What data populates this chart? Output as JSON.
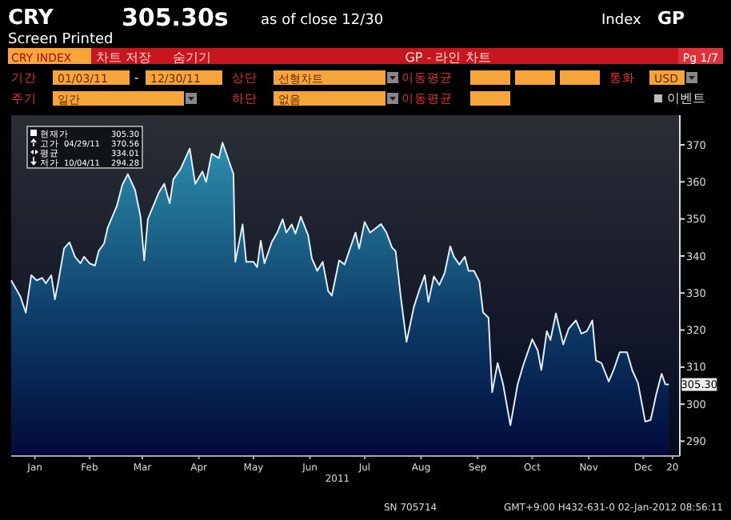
{
  "chart_data": {
    "type": "area",
    "xlabel": "2011",
    "x": [
      "2011-01-03",
      "2011-01-08",
      "2011-01-11",
      "2011-01-14",
      "2011-01-17",
      "2011-01-20",
      "2011-01-22",
      "2011-01-25",
      "2011-01-27",
      "2011-01-29",
      "2011-02-01",
      "2011-02-04",
      "2011-02-07",
      "2011-02-10",
      "2011-02-12",
      "2011-02-15",
      "2011-02-18",
      "2011-02-20",
      "2011-02-23",
      "2011-02-25",
      "2011-03-02",
      "2011-03-05",
      "2011-03-08",
      "2011-03-12",
      "2011-03-15",
      "2011-03-17",
      "2011-03-19",
      "2011-03-22",
      "2011-03-25",
      "2011-03-28",
      "2011-03-31",
      "2011-04-02",
      "2011-04-06",
      "2011-04-11",
      "2011-04-14",
      "2011-04-18",
      "2011-04-20",
      "2011-04-23",
      "2011-04-27",
      "2011-04-29",
      "2011-05-05",
      "2011-05-06",
      "2011-05-10",
      "2011-05-12",
      "2011-05-16",
      "2011-05-18",
      "2011-05-20",
      "2011-05-22",
      "2011-05-26",
      "2011-05-29",
      "2011-06-01",
      "2011-06-03",
      "2011-06-06",
      "2011-06-08",
      "2011-06-11",
      "2011-06-15",
      "2011-06-17",
      "2011-06-20",
      "2011-06-23",
      "2011-06-26",
      "2011-06-28",
      "2011-07-02",
      "2011-07-05",
      "2011-07-08",
      "2011-07-11",
      "2011-07-13",
      "2011-07-16",
      "2011-07-19",
      "2011-07-25",
      "2011-07-28",
      "2011-07-31",
      "2011-08-02",
      "2011-08-05",
      "2011-08-08",
      "2011-08-12",
      "2011-08-15",
      "2011-08-18",
      "2011-08-20",
      "2011-08-23",
      "2011-08-26",
      "2011-08-29",
      "2011-09-01",
      "2011-09-03",
      "2011-09-06",
      "2011-09-09",
      "2011-09-11",
      "2011-09-14",
      "2011-09-17",
      "2011-09-19",
      "2011-09-22",
      "2011-09-24",
      "2011-09-27",
      "2011-09-30",
      "2011-10-04",
      "2011-10-08",
      "2011-10-11",
      "2011-10-16",
      "2011-10-19",
      "2011-10-21",
      "2011-10-24",
      "2011-10-26",
      "2011-10-29",
      "2011-11-02",
      "2011-11-05",
      "2011-11-09",
      "2011-11-12",
      "2011-11-15",
      "2011-11-18",
      "2011-11-20",
      "2011-11-23",
      "2011-11-27",
      "2011-11-30",
      "2011-12-03",
      "2011-12-07",
      "2011-12-10",
      "2011-12-13",
      "2011-12-14",
      "2011-12-17",
      "2011-12-20",
      "2011-12-23",
      "2011-12-26",
      "2011-12-28",
      "2011-12-30"
    ],
    "values": [
      333.4,
      329.1,
      324.7,
      334.8,
      333.4,
      334.1,
      332.6,
      334.8,
      328.3,
      333.4,
      342.0,
      343.7,
      339.8,
      338.0,
      339.8,
      338.0,
      337.4,
      341.3,
      343.4,
      347.7,
      353.5,
      359.2,
      362.1,
      357.8,
      350.6,
      338.8,
      349.9,
      353.5,
      357.1,
      359.5,
      354.2,
      360.7,
      363.5,
      369.0,
      359.5,
      362.8,
      360.0,
      367.6,
      366.4,
      370.6,
      362.1,
      338.4,
      348.5,
      338.4,
      338.4,
      337.0,
      344.1,
      338.0,
      343.7,
      346.3,
      349.9,
      346.3,
      348.5,
      346.0,
      350.6,
      345.6,
      339.4,
      336.0,
      338.4,
      330.5,
      329.3,
      338.8,
      337.7,
      342.0,
      346.3,
      342.0,
      349.2,
      346.3,
      348.6,
      346.3,
      342.3,
      341.3,
      328.3,
      316.8,
      326.2,
      330.8,
      334.8,
      327.6,
      334.5,
      332.2,
      335.5,
      342.6,
      339.8,
      337.7,
      339.8,
      336.0,
      336.0,
      333.1,
      324.8,
      323.3,
      303.2,
      311.1,
      305.4,
      294.3,
      305.4,
      310.4,
      317.5,
      314.5,
      309.2,
      319.7,
      317.3,
      324.5,
      316.1,
      320.4,
      322.6,
      319.0,
      319.7,
      322.6,
      311.8,
      311.1,
      306.1,
      309.7,
      314.0,
      314.0,
      309.0,
      305.8,
      303.2,
      295.3,
      295.7,
      302.5,
      308.2,
      305.4,
      305.3
    ],
    "color": "#dfeef5",
    "xlim": [
      "2011-01-03",
      "2012-01-05"
    ],
    "xticks": [
      {
        "value": "2011-01-16",
        "label": "Jan"
      },
      {
        "value": "2011-02-15",
        "label": "Feb"
      },
      {
        "value": "2011-03-16",
        "label": "Mar"
      },
      {
        "value": "2011-04-16",
        "label": "Apr"
      },
      {
        "value": "2011-05-16",
        "label": "May"
      },
      {
        "value": "2011-06-16",
        "label": "Jun"
      },
      {
        "value": "2011-07-16",
        "label": "Jul"
      },
      {
        "value": "2011-08-16",
        "label": "Aug"
      },
      {
        "value": "2011-09-16",
        "label": "Sep"
      },
      {
        "value": "2011-10-16",
        "label": "Oct"
      },
      {
        "value": "2011-11-16",
        "label": "Nov"
      },
      {
        "value": "2011-12-16",
        "label": "Dec"
      },
      {
        "value": "2012-01-01",
        "label": "20"
      }
    ],
    "ylim": [
      286,
      378
    ],
    "yticks": [
      290,
      300,
      310,
      320,
      330,
      340,
      350,
      360,
      370
    ],
    "grid": false,
    "annotations": [
      "CRY",
      "305.30s",
      "as of close 12/30",
      "Index",
      "GP",
      "Screen Printed",
      "CRY INDEX",
      "차트 저장",
      "숨기기",
      "GP - 라인 차트",
      "Pg 1/7",
      "기간",
      "01/03/11",
      "-",
      "12/30/11",
      "상단",
      "선형차트",
      "이동평균",
      "통화",
      "USD",
      "주기",
      "일간",
      "하단",
      "없음",
      "이동평균",
      "이벤트",
      "현재가",
      "305.30",
      "고가",
      "04/29/11",
      "370.56",
      "평균",
      "334.01",
      "저가",
      "10/04/11",
      "294.28",
      "SN 705714",
      "GMT+9:00 H432-631-0 02-Jan-2012 08:56:11",
      {
        "text": "305.30",
        "x": "2011-12-30",
        "y": 305.3
      }
    ]
  }
}
